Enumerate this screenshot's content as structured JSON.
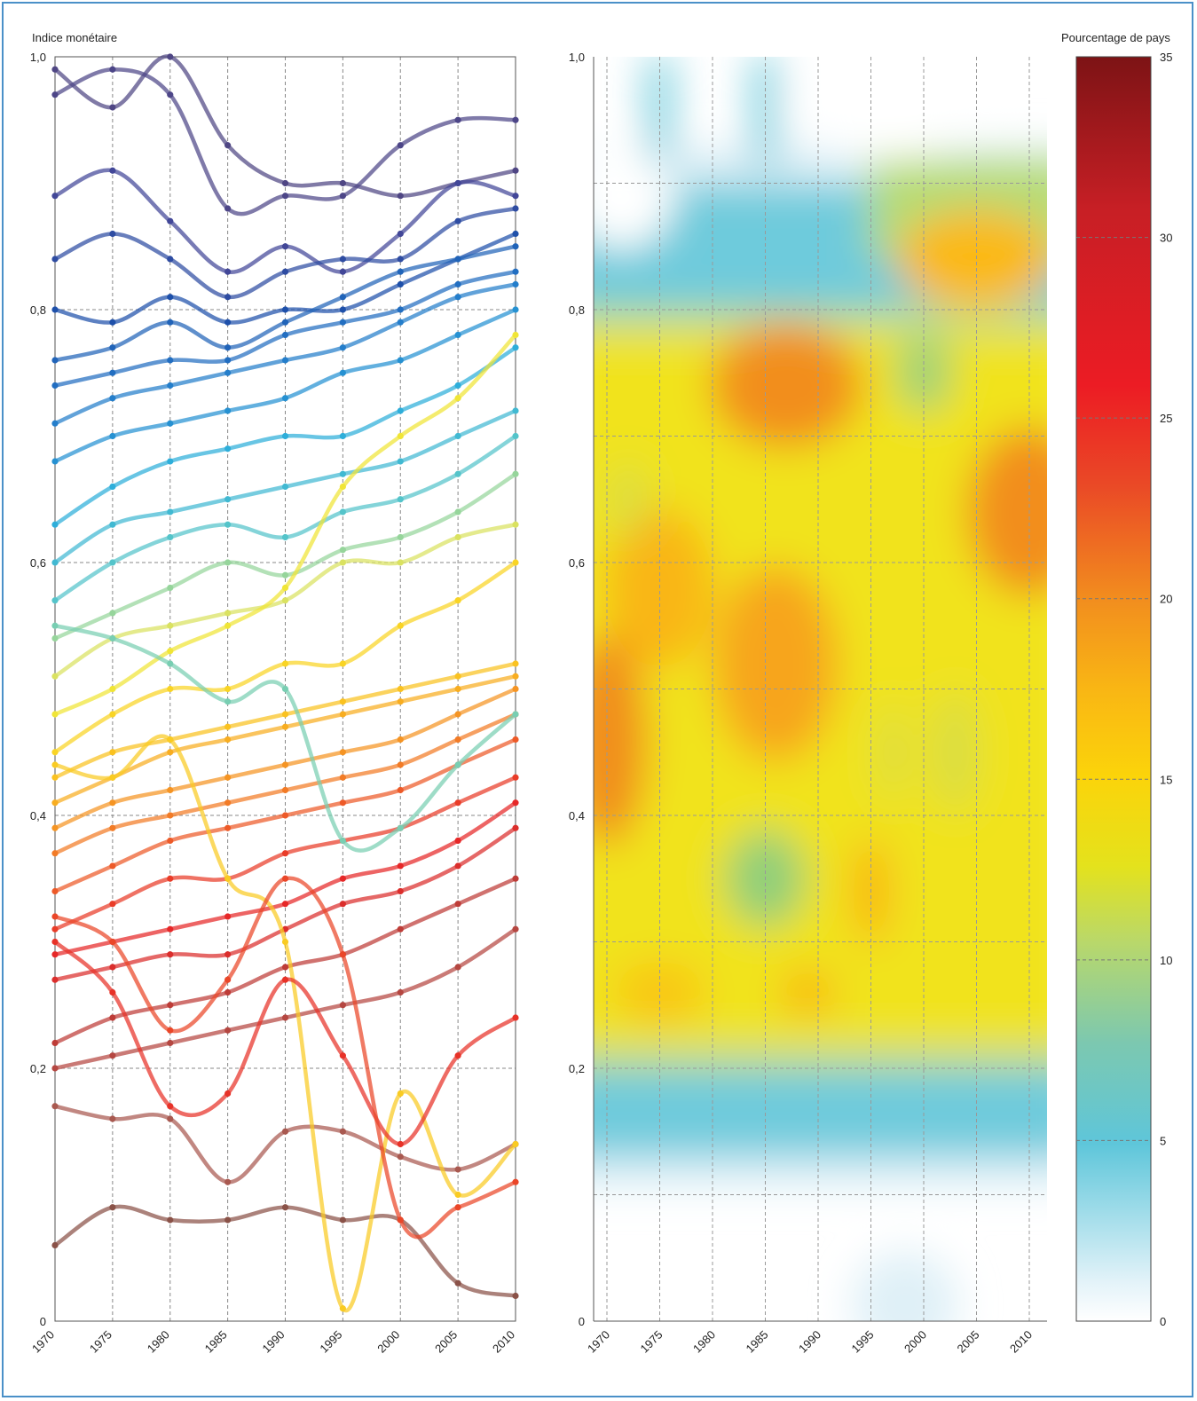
{
  "chart_data": [
    {
      "type": "line",
      "ylabel": "Indice monétaire",
      "x": [
        1970,
        1975,
        1980,
        1985,
        1990,
        1995,
        2000,
        2005,
        2010
      ],
      "xticks": [
        "1970",
        "1975",
        "1980",
        "1985",
        "1990",
        "1995",
        "2000",
        "2005",
        "2010"
      ],
      "yticks": [
        "0",
        "0,2",
        "0,4",
        "0,6",
        "0,8",
        "1,0"
      ],
      "xlim": [
        1970,
        2010
      ],
      "ylim": [
        0,
        1.0
      ],
      "grid": true,
      "series_count": 28,
      "series": [
        {
          "values": [
            0.99,
            0.96,
            1.0,
            0.93,
            0.9,
            0.9,
            0.89,
            0.9,
            0.91
          ]
        },
        {
          "values": [
            0.97,
            0.99,
            0.97,
            0.88,
            0.89,
            0.89,
            0.93,
            0.95,
            0.95
          ]
        },
        {
          "values": [
            0.89,
            0.91,
            0.87,
            0.83,
            0.85,
            0.83,
            0.86,
            0.9,
            0.89
          ]
        },
        {
          "values": [
            0.84,
            0.86,
            0.84,
            0.81,
            0.83,
            0.84,
            0.84,
            0.87,
            0.88
          ]
        },
        {
          "values": [
            0.8,
            0.79,
            0.81,
            0.79,
            0.8,
            0.8,
            0.82,
            0.84,
            0.86
          ]
        },
        {
          "values": [
            0.76,
            0.77,
            0.79,
            0.77,
            0.79,
            0.81,
            0.83,
            0.84,
            0.85
          ]
        },
        {
          "values": [
            0.74,
            0.75,
            0.76,
            0.76,
            0.78,
            0.79,
            0.8,
            0.82,
            0.83
          ]
        },
        {
          "values": [
            0.71,
            0.73,
            0.74,
            0.75,
            0.76,
            0.77,
            0.79,
            0.81,
            0.82
          ]
        },
        {
          "values": [
            0.68,
            0.7,
            0.71,
            0.72,
            0.73,
            0.75,
            0.76,
            0.78,
            0.8
          ]
        },
        {
          "values": [
            0.63,
            0.66,
            0.68,
            0.69,
            0.7,
            0.7,
            0.72,
            0.74,
            0.77
          ]
        },
        {
          "values": [
            0.6,
            0.63,
            0.64,
            0.65,
            0.66,
            0.67,
            0.68,
            0.7,
            0.72
          ]
        },
        {
          "values": [
            0.57,
            0.6,
            0.62,
            0.63,
            0.62,
            0.64,
            0.65,
            0.67,
            0.7
          ]
        },
        {
          "values": [
            0.54,
            0.56,
            0.58,
            0.6,
            0.59,
            0.61,
            0.62,
            0.64,
            0.67
          ]
        },
        {
          "values": [
            0.51,
            0.54,
            0.55,
            0.56,
            0.57,
            0.6,
            0.6,
            0.62,
            0.63
          ]
        },
        {
          "values": [
            0.48,
            0.5,
            0.53,
            0.55,
            0.58,
            0.66,
            0.7,
            0.73,
            0.78
          ]
        },
        {
          "values": [
            0.45,
            0.48,
            0.5,
            0.5,
            0.52,
            0.52,
            0.55,
            0.57,
            0.6
          ]
        },
        {
          "values": [
            0.43,
            0.45,
            0.46,
            0.47,
            0.48,
            0.49,
            0.5,
            0.51,
            0.52
          ]
        },
        {
          "values": [
            0.41,
            0.43,
            0.45,
            0.46,
            0.47,
            0.48,
            0.49,
            0.5,
            0.51
          ]
        },
        {
          "values": [
            0.39,
            0.41,
            0.42,
            0.43,
            0.44,
            0.45,
            0.46,
            0.48,
            0.5
          ]
        },
        {
          "values": [
            0.37,
            0.39,
            0.4,
            0.41,
            0.42,
            0.43,
            0.44,
            0.46,
            0.48
          ]
        },
        {
          "values": [
            0.34,
            0.36,
            0.38,
            0.39,
            0.4,
            0.41,
            0.42,
            0.44,
            0.46
          ]
        },
        {
          "values": [
            0.31,
            0.33,
            0.35,
            0.35,
            0.37,
            0.38,
            0.39,
            0.41,
            0.43
          ]
        },
        {
          "values": [
            0.29,
            0.3,
            0.31,
            0.32,
            0.33,
            0.35,
            0.36,
            0.38,
            0.41
          ]
        },
        {
          "values": [
            0.27,
            0.28,
            0.29,
            0.29,
            0.31,
            0.33,
            0.34,
            0.36,
            0.39
          ]
        },
        {
          "values": [
            0.22,
            0.24,
            0.25,
            0.26,
            0.28,
            0.29,
            0.31,
            0.33,
            0.35
          ]
        },
        {
          "values": [
            0.2,
            0.21,
            0.22,
            0.23,
            0.24,
            0.25,
            0.26,
            0.28,
            0.31
          ]
        },
        {
          "values": [
            0.17,
            0.16,
            0.16,
            0.11,
            0.15,
            0.15,
            0.13,
            0.12,
            0.14
          ]
        },
        {
          "values": [
            0.06,
            0.09,
            0.08,
            0.08,
            0.09,
            0.08,
            0.08,
            0.03,
            0.02
          ]
        }
      ],
      "extra_series": [
        {
          "values": [
            0.44,
            0.43,
            0.46,
            0.35,
            0.3,
            0.01,
            0.18,
            0.1,
            0.14
          ]
        },
        {
          "values": [
            0.55,
            0.54,
            0.52,
            0.49,
            0.5,
            0.38,
            0.39,
            0.44,
            0.48
          ]
        },
        {
          "values": [
            0.3,
            0.26,
            0.17,
            0.18,
            0.27,
            0.21,
            0.14,
            0.21,
            0.24
          ]
        },
        {
          "values": [
            0.32,
            0.3,
            0.23,
            0.27,
            0.35,
            0.29,
            0.08,
            0.09,
            0.11
          ]
        }
      ]
    },
    {
      "type": "heatmap",
      "x": [
        1970,
        1975,
        1980,
        1985,
        1990,
        1995,
        2000,
        2005,
        2010
      ],
      "xticks": [
        "1970",
        "1975",
        "1980",
        "1985",
        "1990",
        "1995",
        "2000",
        "2005",
        "2010"
      ],
      "yticks": [
        "0",
        "0,2",
        "0,4",
        "0,6",
        "0,8",
        "1,0"
      ],
      "ylim": [
        0,
        1.0
      ],
      "colorbar": {
        "label": "Pourcentage de pays",
        "ticks": [
          "0",
          "5",
          "10",
          "15",
          "20",
          "25",
          "30",
          "35"
        ],
        "range": [
          0,
          35
        ]
      },
      "hotspots": [
        {
          "x": 1970,
          "y": 0.46,
          "value": 20
        },
        {
          "x": 1987,
          "y": 0.74,
          "value": 20
        },
        {
          "x": 2010,
          "y": 0.64,
          "value": 19
        },
        {
          "x": 2003,
          "y": 0.83,
          "value": 16
        },
        {
          "x": 1985,
          "y": 0.35,
          "value": 9
        },
        {
          "x": 2000,
          "y": 0.75,
          "value": 11
        },
        {
          "x": 1995,
          "y": 0.34,
          "value": 17
        },
        {
          "x": 1986,
          "y": 0.52,
          "value": 18
        }
      ]
    }
  ]
}
